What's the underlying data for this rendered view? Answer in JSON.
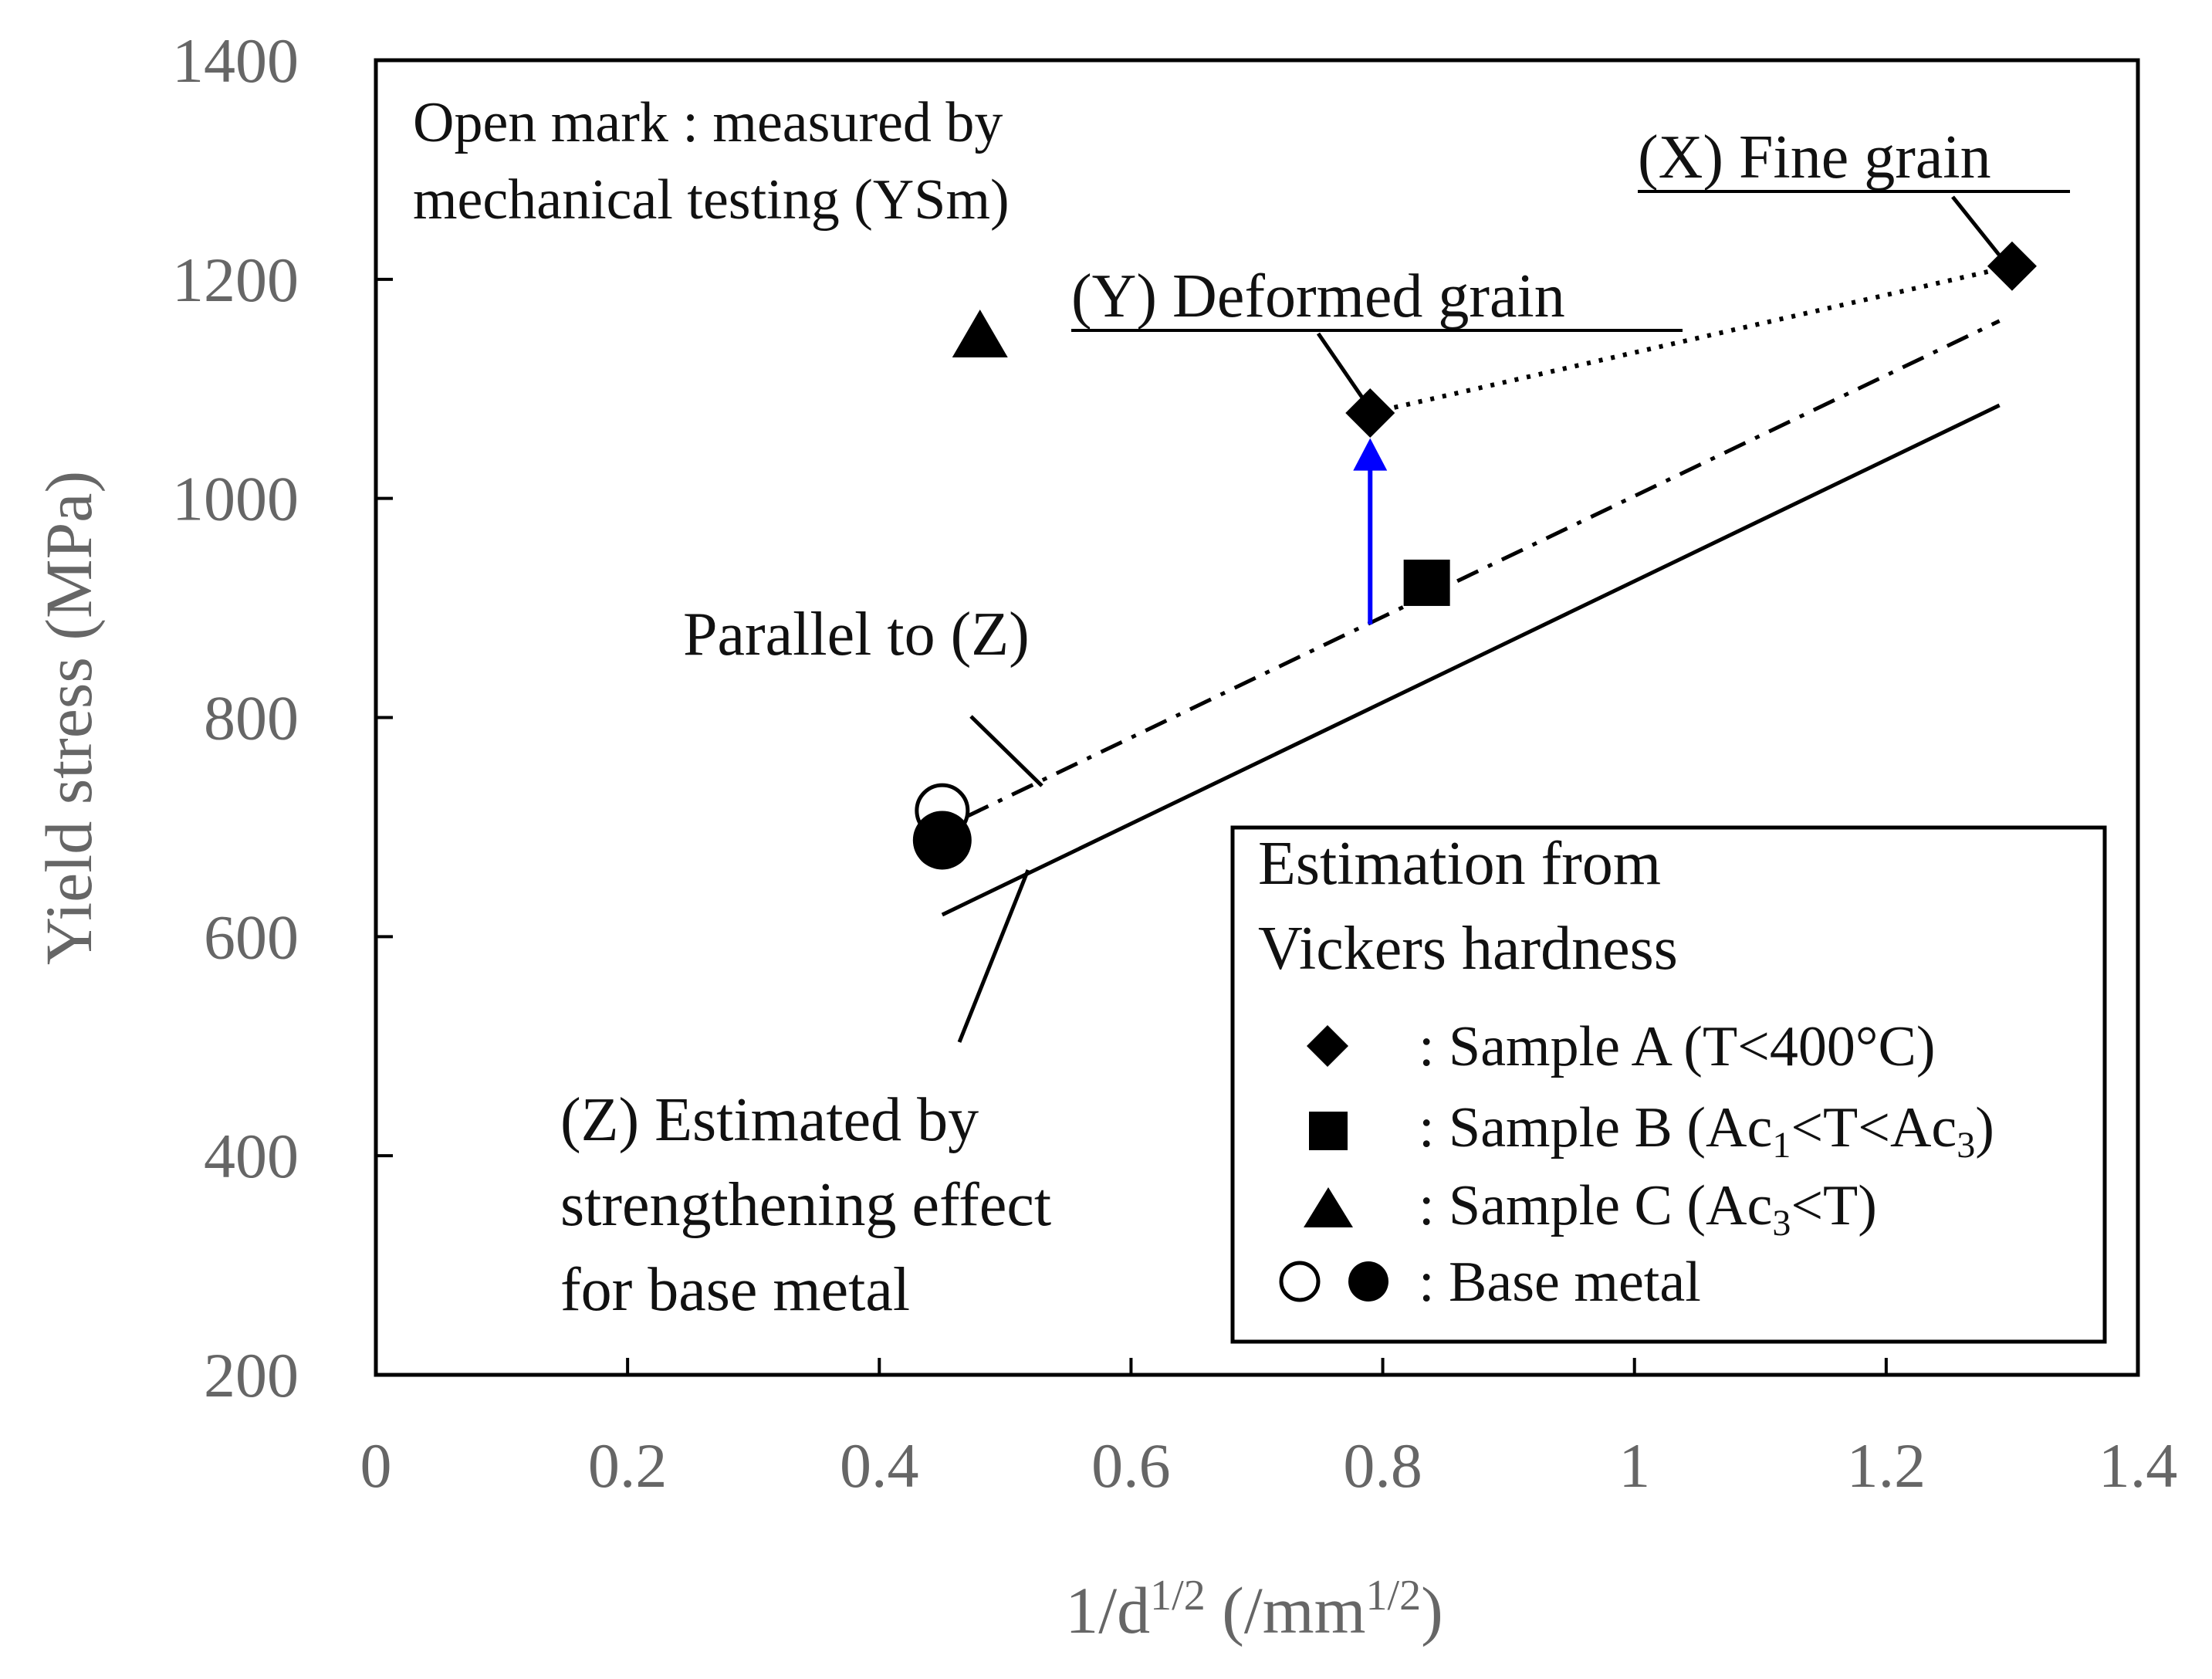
{
  "chart_data": {
    "type": "scatter",
    "xlabel": {
      "base": "1/d",
      "sup1": "1/2",
      "mid": " (/mm",
      "sup2": "1/2",
      "end": ")"
    },
    "ylabel": "Yield stress (MPa)",
    "xlim": [
      0,
      1.4
    ],
    "ylim": [
      200,
      1400
    ],
    "x_ticks": [
      "0",
      "0.2",
      "0.4",
      "0.6",
      "0.8",
      "1",
      "1.2",
      "1.4"
    ],
    "y_ticks": [
      "200",
      "400",
      "600",
      "800",
      "1000",
      "1200",
      "1400"
    ],
    "series": [
      {
        "name": "Sample A",
        "marker": "diamond",
        "fill": "filled",
        "points": [
          [
            0.79,
            1078
          ],
          [
            1.3,
            1212
          ]
        ]
      },
      {
        "name": "Sample B",
        "marker": "square",
        "fill": "filled",
        "points": [
          [
            0.835,
            923
          ]
        ]
      },
      {
        "name": "Sample C",
        "marker": "triangle",
        "fill": "filled",
        "points": [
          [
            0.48,
            1147
          ]
        ]
      },
      {
        "name": "Base metal (measured)",
        "marker": "circle",
        "fill": "open",
        "points": [
          [
            0.45,
            715
          ]
        ]
      },
      {
        "name": "Base metal (estimated)",
        "marker": "circle",
        "fill": "filled",
        "points": [
          [
            0.45,
            688
          ]
        ]
      }
    ],
    "lines": [
      {
        "name": "(Z) Estimated by strengthening effect for base metal",
        "style": "solid",
        "points": [
          [
            0.45,
            620
          ],
          [
            1.29,
            1085
          ]
        ]
      },
      {
        "name": "Parallel to (Z)",
        "style": "dashdot",
        "points": [
          [
            0.47,
            710
          ],
          [
            1.29,
            1162
          ]
        ]
      },
      {
        "name": "Fine grain link",
        "style": "dotted",
        "points": [
          [
            0.79,
            1078
          ],
          [
            1.3,
            1212
          ]
        ]
      }
    ],
    "arrow": {
      "color": "#0000ff",
      "from": [
        0.79,
        885
      ],
      "to": [
        0.79,
        1055
      ]
    },
    "annotations": {
      "open_mark_line1": "Open mark : measured by",
      "open_mark_line2": "mechanical testing (YSm)",
      "fine_grain": "(X) Fine grain",
      "deformed_grain": "(Y) Deformed grain",
      "parallel": "Parallel to (Z)",
      "z_line1": "(Z) Estimated by",
      "z_line2": "strengthening effect",
      "z_line3": "for base metal"
    },
    "legend": {
      "title_line1": "Estimation from",
      "title_line2": "Vickers hardness",
      "sample_a": ": Sample A (T<400°C)",
      "sample_b_pre": ": Sample B (Ac",
      "sample_b_sub1": "1",
      "sample_b_mid": "<T<Ac",
      "sample_b_sub2": "3",
      "sample_b_post": ")",
      "sample_c_pre": ": Sample C (Ac",
      "sample_c_sub": "3",
      "sample_c_post": "<T)",
      "base_metal": ": Base metal",
      "position": "bottom-right"
    }
  }
}
